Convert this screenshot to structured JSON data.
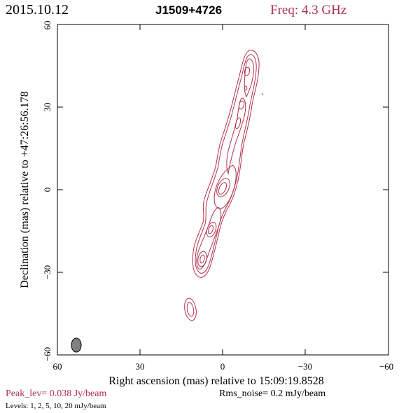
{
  "header": {
    "date": "2015.10.12",
    "source": "J1509+4726",
    "frequency": "Freq: 4.3 GHz"
  },
  "axes": {
    "x_label": "Right ascension (mas) relative to 15:09:19.8528",
    "y_label": "Declination (mas) relative to +47:26:56.178",
    "x_ticks": [
      "60",
      "30",
      "0",
      "−30",
      "−60"
    ],
    "y_ticks": [
      "60",
      "30",
      "0",
      "−30",
      "−60"
    ],
    "x_range": [
      60,
      -60
    ],
    "y_range": [
      -60,
      60
    ]
  },
  "footer": {
    "peak": "Peak_lev=  0.038 Jy/beam",
    "rms": "Rms_noise=   0.2 mJy/beam",
    "levels": "Levels:   1,    2,    5,   10,   20 mJy/beam"
  },
  "colors": {
    "contour": "#b0304f",
    "beam": "#808080"
  }
}
